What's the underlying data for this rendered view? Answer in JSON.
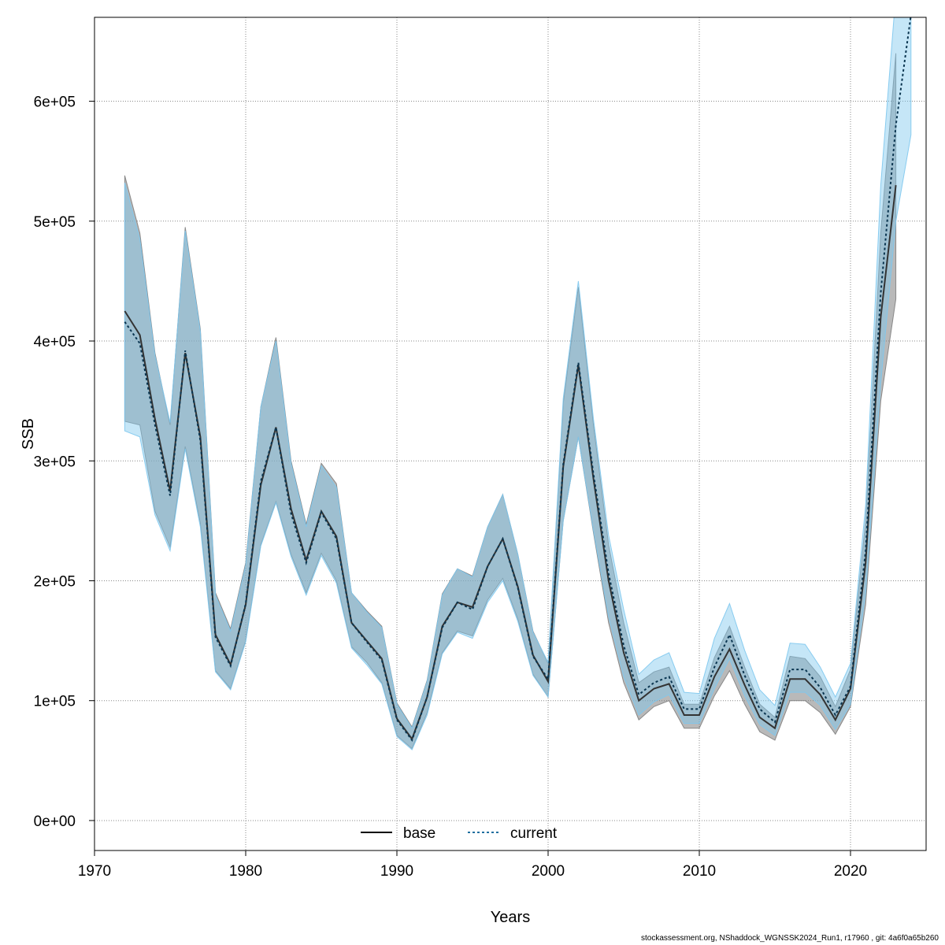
{
  "chart_data": {
    "type": "line",
    "xlabel": "Years",
    "ylabel": "SSB",
    "xlim": [
      1970,
      2025
    ],
    "ylim": [
      -25000,
      670000
    ],
    "x_ticks": [
      1970,
      1980,
      1990,
      2000,
      2010,
      2020
    ],
    "x_tick_labels": [
      "1970",
      "1980",
      "1990",
      "2000",
      "2010",
      "2020"
    ],
    "y_ticks": [
      0,
      100000,
      200000,
      300000,
      400000,
      500000,
      600000
    ],
    "y_tick_labels": [
      "0e+00",
      "1e+05",
      "2e+05",
      "3e+05",
      "4e+05",
      "5e+05",
      "6e+05"
    ],
    "grid": true,
    "legend_position": "bottom-center",
    "colors": {
      "base_line": "#000000",
      "current_line": "#1f6f9f",
      "base_band": "#7f7f7f",
      "current_band": "#7ec8ee"
    },
    "series": [
      {
        "name": "base",
        "line": "solid",
        "x": [
          1972,
          1973,
          1974,
          1975,
          1976,
          1977,
          1978,
          1979,
          1980,
          1981,
          1982,
          1983,
          1984,
          1985,
          1986,
          1987,
          1988,
          1989,
          1990,
          1991,
          1992,
          1993,
          1994,
          1995,
          1996,
          1997,
          1998,
          1999,
          2000,
          2001,
          2002,
          2003,
          2004,
          2005,
          2006,
          2007,
          2008,
          2009,
          2010,
          2011,
          2012,
          2013,
          2014,
          2015,
          2016,
          2017,
          2018,
          2019,
          2020,
          2021,
          2022,
          2023
        ],
        "values": [
          425000,
          405000,
          335000,
          275000,
          390000,
          320000,
          155000,
          130000,
          180000,
          280000,
          328000,
          260000,
          217000,
          258000,
          237000,
          165000,
          150000,
          135000,
          85000,
          68000,
          103000,
          162000,
          182000,
          178000,
          212000,
          235000,
          195000,
          138000,
          116000,
          295000,
          380000,
          285000,
          200000,
          140000,
          100000,
          110000,
          114000,
          88000,
          88000,
          120000,
          143000,
          113000,
          86000,
          77000,
          118000,
          118000,
          105000,
          84000,
          110000,
          215000,
          420000,
          530000
        ],
        "lower": [
          333000,
          330000,
          258000,
          228000,
          312000,
          248000,
          125000,
          110000,
          150000,
          230000,
          266000,
          222000,
          190000,
          223000,
          200000,
          145000,
          132000,
          115000,
          71000,
          60000,
          90000,
          140000,
          158000,
          154000,
          184000,
          202000,
          168000,
          122000,
          103000,
          250000,
          320000,
          240000,
          165000,
          115000,
          84000,
          95000,
          100000,
          77000,
          77000,
          104000,
          125000,
          97000,
          74000,
          67000,
          100000,
          100000,
          90000,
          72000,
          95000,
          180000,
          350000,
          435000
        ],
        "upper": [
          538000,
          490000,
          390000,
          330000,
          495000,
          410000,
          190000,
          160000,
          215000,
          345000,
          403000,
          300000,
          247000,
          298000,
          281000,
          190000,
          175000,
          162000,
          98000,
          78000,
          117000,
          189000,
          210000,
          204000,
          245000,
          272000,
          222000,
          158000,
          131000,
          348000,
          445000,
          330000,
          230000,
          165000,
          115000,
          124000,
          128000,
          97000,
          97000,
          136000,
          162000,
          128000,
          97000,
          86000,
          137000,
          135000,
          120000,
          95000,
          126000,
          250000,
          490000,
          640000
        ]
      },
      {
        "name": "current",
        "line": "dashed",
        "x": [
          1972,
          1973,
          1974,
          1975,
          1976,
          1977,
          1978,
          1979,
          1980,
          1981,
          1982,
          1983,
          1984,
          1985,
          1986,
          1987,
          1988,
          1989,
          1990,
          1991,
          1992,
          1993,
          1994,
          1995,
          1996,
          1997,
          1998,
          1999,
          2000,
          2001,
          2002,
          2003,
          2004,
          2005,
          2006,
          2007,
          2008,
          2009,
          2010,
          2011,
          2012,
          2013,
          2014,
          2015,
          2016,
          2017,
          2018,
          2019,
          2020,
          2021,
          2022,
          2023,
          2024
        ],
        "values": [
          416000,
          398000,
          330000,
          271000,
          392000,
          317000,
          153000,
          129000,
          181000,
          283000,
          328000,
          256000,
          215000,
          257000,
          235000,
          165000,
          149000,
          134000,
          84000,
          67000,
          103000,
          161000,
          182000,
          176000,
          212000,
          235000,
          194000,
          137000,
          118000,
          297000,
          382000,
          289000,
          206000,
          146000,
          105000,
          115000,
          120000,
          93000,
          93000,
          128000,
          155000,
          121000,
          93000,
          82000,
          126000,
          126000,
          111000,
          88000,
          112000,
          225000,
          440000,
          580000,
          672000
        ],
        "lower": [
          325000,
          320000,
          255000,
          225000,
          310000,
          245000,
          124000,
          109000,
          149000,
          229000,
          265000,
          220000,
          188000,
          221000,
          198000,
          144000,
          130000,
          114000,
          70000,
          59000,
          88000,
          139000,
          157000,
          152000,
          182000,
          200000,
          166000,
          121000,
          103000,
          250000,
          320000,
          242000,
          170000,
          120000,
          88000,
          99000,
          105000,
          81000,
          81000,
          110000,
          135000,
          104000,
          80000,
          71000,
          107000,
          107000,
          96000,
          76000,
          97000,
          190000,
          365000,
          500000,
          572000
        ],
        "upper": [
          532000,
          485000,
          388000,
          332000,
          492000,
          408000,
          188000,
          158000,
          213000,
          345000,
          400000,
          298000,
          245000,
          296000,
          278000,
          190000,
          174000,
          161000,
          97000,
          77000,
          116000,
          188000,
          210000,
          203000,
          245000,
          272000,
          222000,
          157000,
          132000,
          352000,
          450000,
          335000,
          238000,
          176000,
          122000,
          134000,
          140000,
          107000,
          106000,
          152000,
          181000,
          142000,
          109000,
          96000,
          148000,
          147000,
          128000,
          103000,
          131000,
          263000,
          530000,
          690000,
          690000
        ]
      }
    ]
  },
  "footer": "stockassessment.org, NShaddock_WGNSSK2024_Run1, r17960 , git: 4a6f0a65b260"
}
